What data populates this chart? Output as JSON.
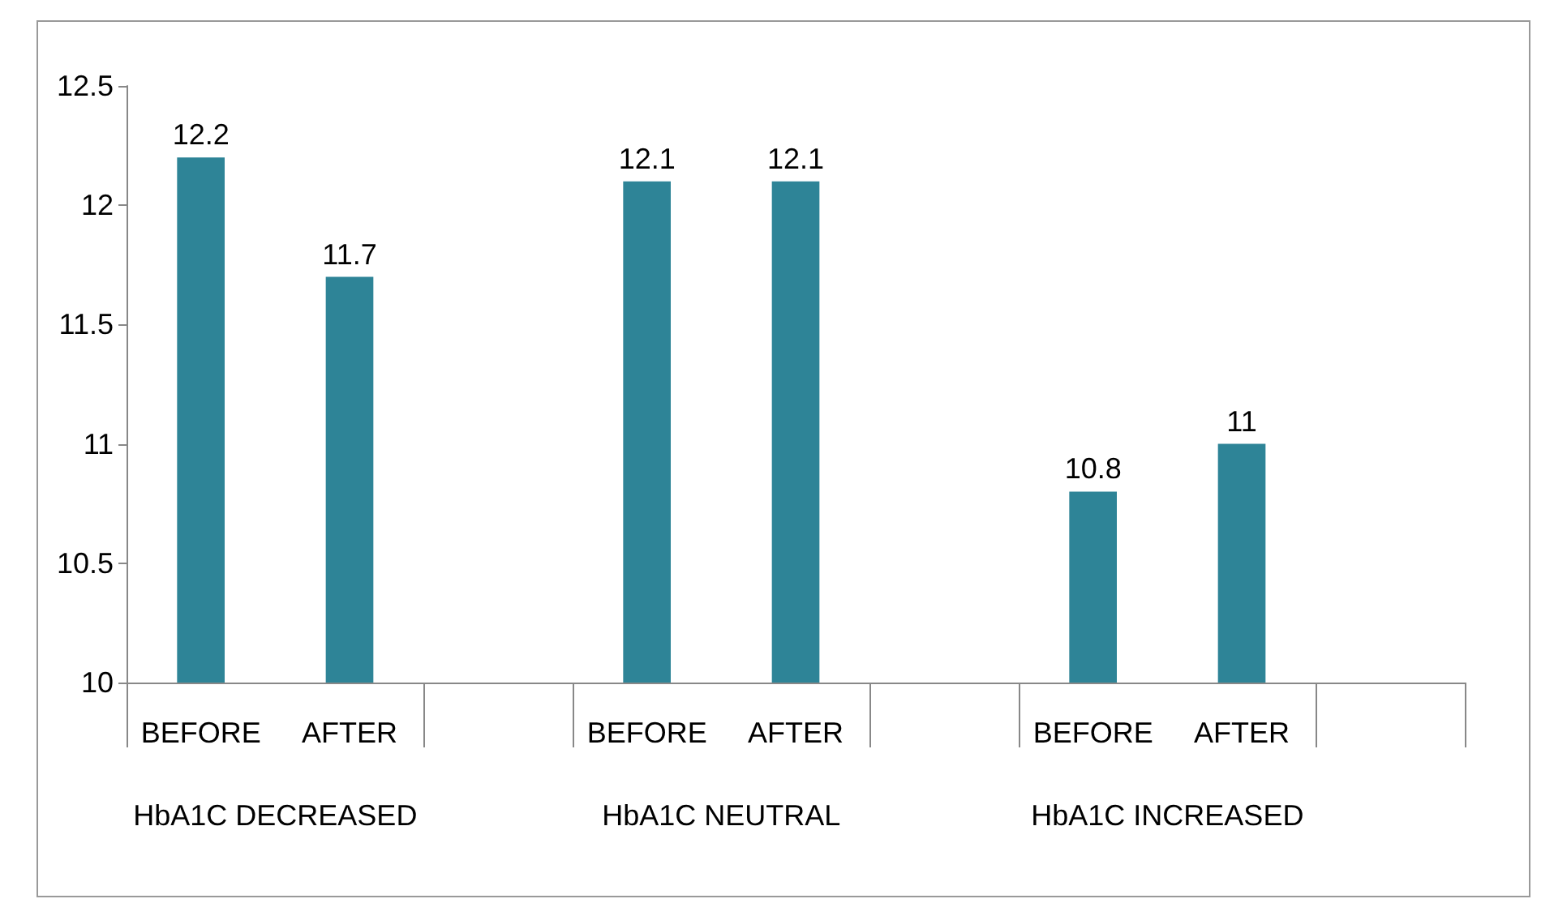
{
  "chart_data": {
    "type": "bar",
    "categories": [
      "BEFORE",
      "AFTER",
      null,
      "BEFORE",
      "AFTER",
      null,
      "BEFORE",
      "AFTER",
      null
    ],
    "values": [
      12.2,
      11.7,
      null,
      12.1,
      12.1,
      null,
      10.8,
      11,
      null
    ],
    "color": "#2e8497",
    "ylim": [
      10,
      12.5
    ],
    "yticks": [
      10,
      10.5,
      11,
      11.5,
      12,
      12.5
    ],
    "data_labels": true,
    "grid": false,
    "annotations": [
      "HbA1C DECREASED",
      "HbA1C NEUTRAL",
      "HbA1C INCREASED"
    ]
  }
}
